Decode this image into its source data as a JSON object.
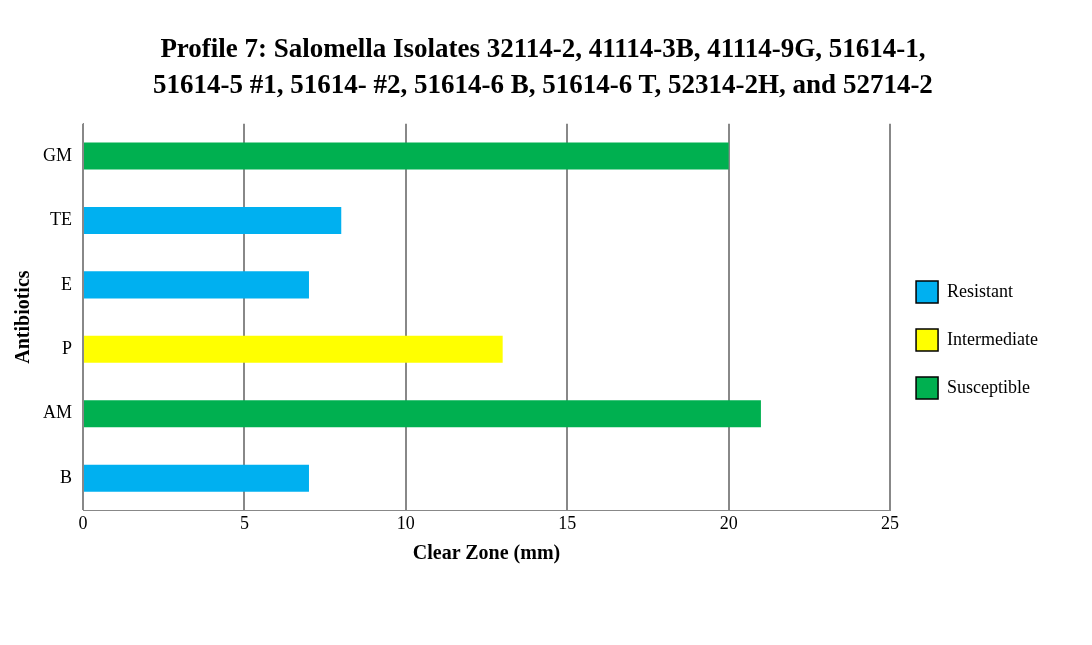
{
  "chart_data": {
    "type": "bar",
    "orientation": "horizontal",
    "stacked": true,
    "title": "Profile 7: Salomella Isolates 32114-2, 41114-3B, 41114-9G, 51614-1, 51614-5 #1, 51614- #2, 51614-6 B, 51614-6 T, 52314-2H,  and 52714-2",
    "xlabel": "Clear Zone (mm)",
    "ylabel": "Antibiotics",
    "categories": [
      "GM",
      "TE",
      "E",
      "P",
      "AM",
      "B"
    ],
    "series": [
      {
        "name": "Resistant",
        "color": "#00b0f0",
        "values": [
          null,
          8,
          7,
          null,
          null,
          7
        ]
      },
      {
        "name": "Intermediate",
        "color": "#ffff00",
        "values": [
          null,
          null,
          null,
          13,
          null,
          null
        ]
      },
      {
        "name": "Susceptible",
        "color": "#00b050",
        "values": [
          20,
          null,
          null,
          null,
          21,
          null
        ]
      }
    ],
    "xlim": [
      0,
      25
    ],
    "xticks": [
      0,
      5,
      10,
      15,
      20,
      25
    ],
    "grid": "x",
    "legend": "right"
  }
}
